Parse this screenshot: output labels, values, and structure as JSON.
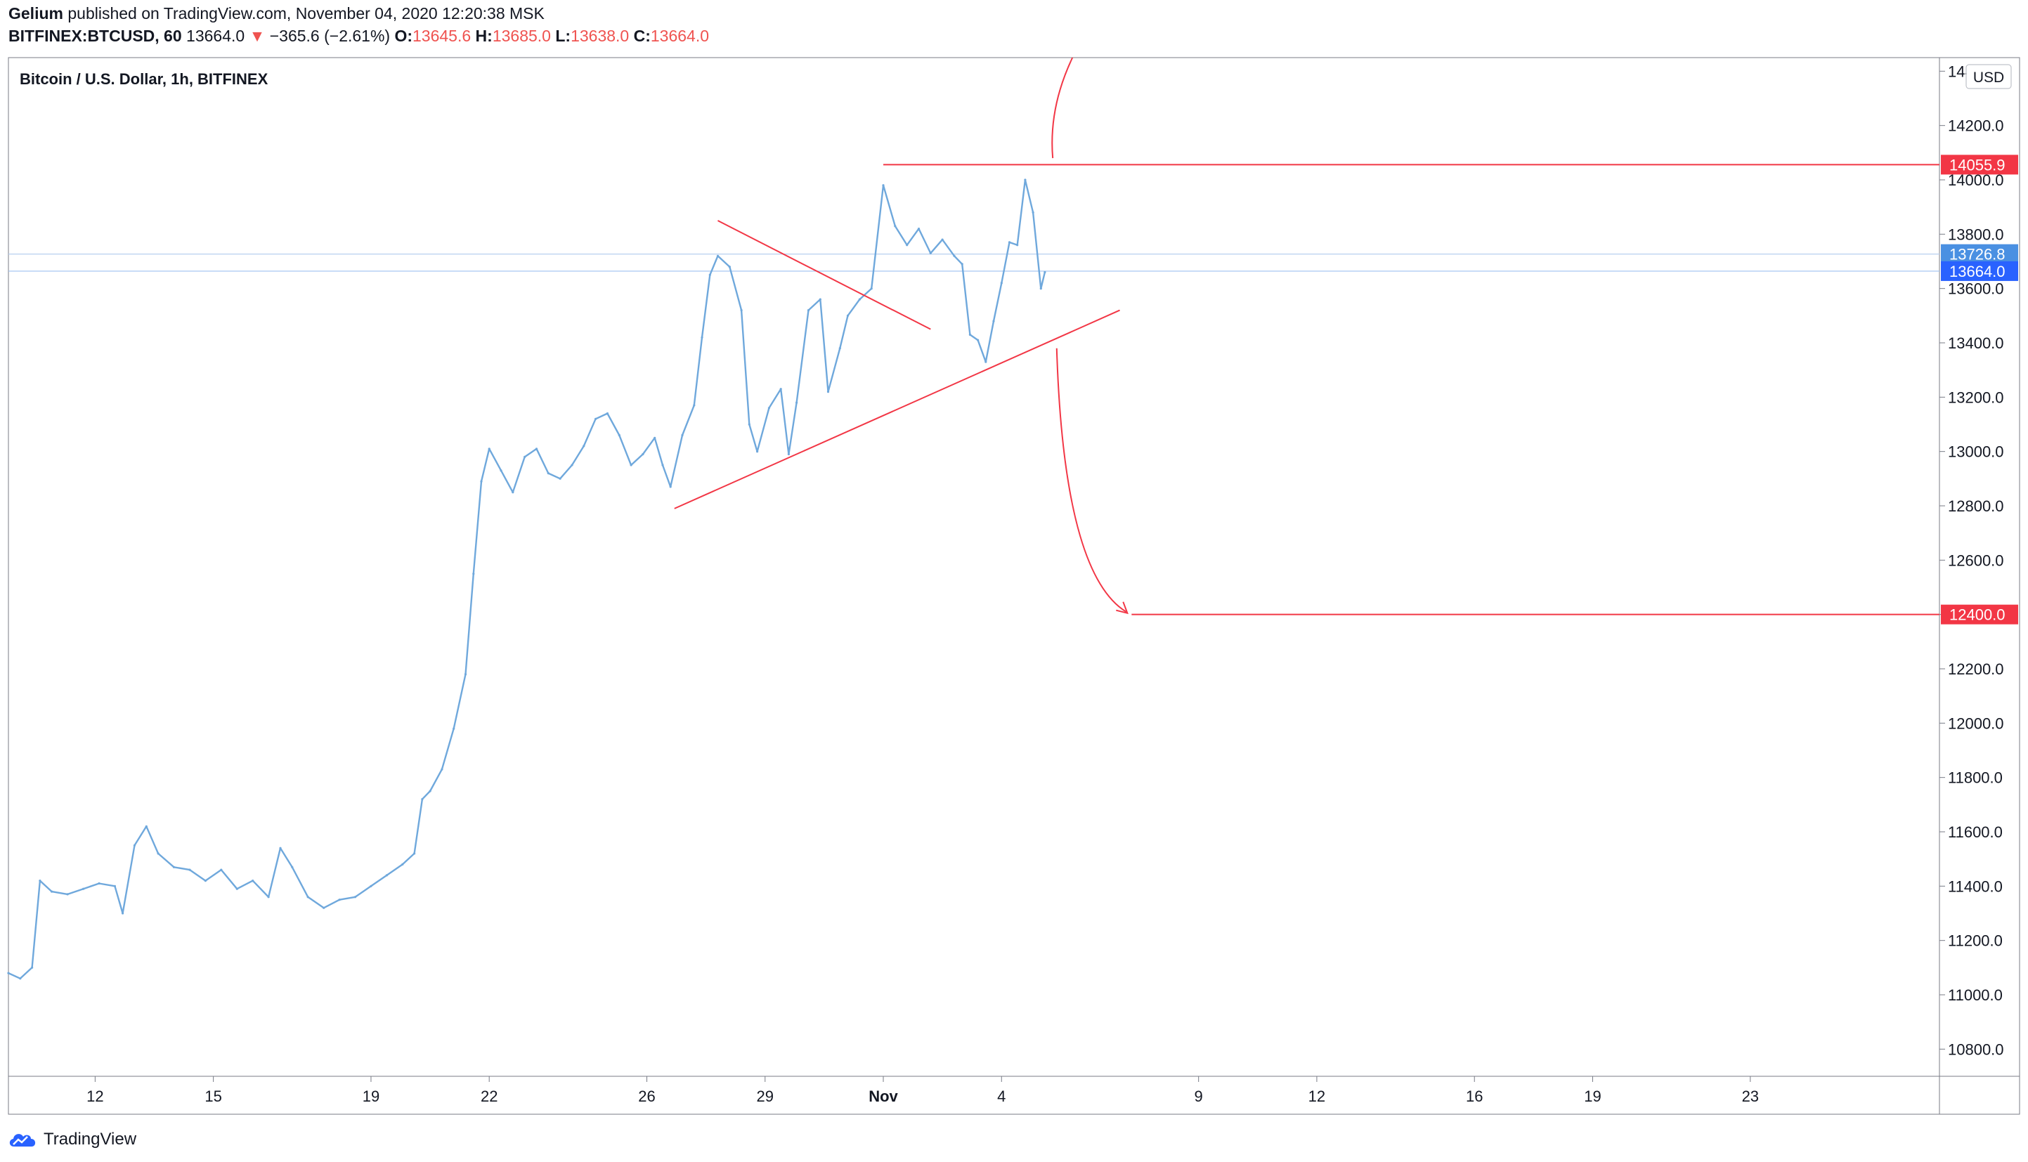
{
  "header": {
    "author": "Gelium",
    "published_text": "published on TradingView.com, November 04, 2020 12:20:38 MSK",
    "symbol": "BITFINEX:BTCUSD, 60",
    "last": "13664.0",
    "change_arrow": "▼",
    "change": "−365.6 (−2.61%)",
    "o_label": "O:",
    "o_value": "13645.6",
    "h_label": "H:",
    "h_value": "13685.0",
    "l_label": "L:",
    "l_value": "13638.0",
    "c_label": "C:",
    "c_value": "13664.0"
  },
  "footer": {
    "brand": "TradingView",
    "logo_icon": "tradingview-cloud-icon"
  },
  "colors": {
    "series": "#6fa8dc",
    "drawing": "#f23645",
    "axis_text": "#131722",
    "last_price_bg": "#2962ff",
    "mark_price_bg": "#4a90e2",
    "target_bg": "#f23645"
  },
  "chart_data": {
    "type": "line",
    "title": "Bitcoin / U.S. Dollar, 1h, BITFINEX",
    "currency_label": "USD",
    "ylim": [
      10700,
      14450
    ],
    "y_ticks": [
      "10800.0",
      "11000.0",
      "11200.0",
      "11400.0",
      "11600.0",
      "11800.0",
      "12000.0",
      "12200.0",
      "12400.0",
      "12600.0",
      "12800.0",
      "13000.0",
      "13200.0",
      "13400.0",
      "13600.0",
      "13800.0",
      "14000.0",
      "14200.0",
      "14400.0"
    ],
    "x_range_days": [
      10.0,
      26.2
    ],
    "x_ticks": [
      {
        "day": 11.5,
        "label": "12"
      },
      {
        "day": 14.5,
        "label": "15"
      },
      {
        "day": 18.5,
        "label": "19"
      },
      {
        "day": 21.5,
        "label": "22"
      },
      {
        "day": 25.5,
        "label": "26"
      },
      {
        "day": 28.5,
        "label": "29"
      },
      {
        "day": 31.5,
        "label": "Nov"
      },
      {
        "day": 34.5,
        "label": "4"
      },
      {
        "day": 39.5,
        "label": "9"
      },
      {
        "day": 42.5,
        "label": "12"
      },
      {
        "day": 46.5,
        "label": "16"
      },
      {
        "day": 49.5,
        "label": "19"
      },
      {
        "day": 53.5,
        "label": "23"
      }
    ],
    "x_day_min": 9.3,
    "x_day_max": 58.3,
    "series": [
      {
        "points": [
          [
            9.3,
            11080
          ],
          [
            9.6,
            11060
          ],
          [
            9.9,
            11100
          ],
          [
            10.1,
            11420
          ],
          [
            10.4,
            11380
          ],
          [
            10.8,
            11370
          ],
          [
            11.2,
            11390
          ],
          [
            11.6,
            11410
          ],
          [
            12.0,
            11400
          ],
          [
            12.2,
            11300
          ],
          [
            12.5,
            11550
          ],
          [
            12.8,
            11620
          ],
          [
            13.1,
            11520
          ],
          [
            13.5,
            11470
          ],
          [
            13.9,
            11460
          ],
          [
            14.3,
            11420
          ],
          [
            14.7,
            11460
          ],
          [
            15.1,
            11390
          ],
          [
            15.5,
            11420
          ],
          [
            15.9,
            11360
          ],
          [
            16.2,
            11540
          ],
          [
            16.5,
            11470
          ],
          [
            16.9,
            11360
          ],
          [
            17.3,
            11320
          ],
          [
            17.7,
            11350
          ],
          [
            18.1,
            11360
          ],
          [
            18.5,
            11400
          ],
          [
            18.9,
            11440
          ],
          [
            19.3,
            11480
          ],
          [
            19.6,
            11520
          ],
          [
            19.8,
            11720
          ],
          [
            20.0,
            11750
          ],
          [
            20.3,
            11830
          ],
          [
            20.6,
            11980
          ],
          [
            20.9,
            12180
          ],
          [
            21.1,
            12550
          ],
          [
            21.3,
            12890
          ],
          [
            21.5,
            13010
          ],
          [
            21.8,
            12930
          ],
          [
            22.1,
            12850
          ],
          [
            22.4,
            12980
          ],
          [
            22.7,
            13010
          ],
          [
            23.0,
            12920
          ],
          [
            23.3,
            12900
          ],
          [
            23.6,
            12950
          ],
          [
            23.9,
            13020
          ],
          [
            24.2,
            13120
          ],
          [
            24.5,
            13140
          ],
          [
            24.8,
            13060
          ],
          [
            25.1,
            12950
          ],
          [
            25.4,
            12990
          ],
          [
            25.7,
            13050
          ],
          [
            25.9,
            12950
          ],
          [
            26.1,
            12870
          ],
          [
            26.4,
            13060
          ],
          [
            26.7,
            13170
          ],
          [
            26.9,
            13420
          ],
          [
            27.1,
            13650
          ],
          [
            27.3,
            13720
          ],
          [
            27.6,
            13680
          ],
          [
            27.9,
            13520
          ],
          [
            28.1,
            13100
          ],
          [
            28.3,
            13000
          ],
          [
            28.6,
            13160
          ],
          [
            28.9,
            13230
          ],
          [
            29.1,
            12990
          ],
          [
            29.3,
            13180
          ],
          [
            29.6,
            13520
          ],
          [
            29.9,
            13560
          ],
          [
            30.1,
            13220
          ],
          [
            30.4,
            13380
          ],
          [
            30.6,
            13500
          ],
          [
            30.9,
            13560
          ],
          [
            31.2,
            13600
          ],
          [
            31.5,
            13980
          ],
          [
            31.8,
            13830
          ],
          [
            32.1,
            13760
          ],
          [
            32.4,
            13820
          ],
          [
            32.7,
            13730
          ],
          [
            33.0,
            13780
          ],
          [
            33.3,
            13720
          ],
          [
            33.5,
            13690
          ],
          [
            33.7,
            13430
          ],
          [
            33.9,
            13410
          ],
          [
            34.1,
            13330
          ],
          [
            34.3,
            13480
          ],
          [
            34.5,
            13620
          ],
          [
            34.7,
            13770
          ],
          [
            34.9,
            13760
          ],
          [
            35.1,
            14000
          ],
          [
            35.3,
            13880
          ],
          [
            35.5,
            13600
          ],
          [
            35.6,
            13660
          ]
        ]
      }
    ],
    "drawings": {
      "resistance": {
        "x1": 31.5,
        "x2": 58.3,
        "y": 14055.9,
        "label": "14055.9"
      },
      "target": {
        "x1": 37.8,
        "x2": 58.3,
        "y": 12400.0,
        "label": "12400.0"
      },
      "descending_line": {
        "x1": 27.3,
        "y1": 13850,
        "x2": 32.7,
        "y2": 13450
      },
      "ascending_line": {
        "x1": 26.2,
        "y1": 12790,
        "x2": 37.5,
        "y2": 13520
      },
      "curve_up": {
        "x1": 35.8,
        "y1": 14080,
        "x2": 36.3,
        "y2": 14460
      },
      "curve_down": {
        "x1": 35.9,
        "y1": 13380,
        "x2": 37.8,
        "y2": 12400
      }
    },
    "price_marks": [
      {
        "y": 13726.8,
        "label": "13726.8",
        "kind": "mark"
      },
      {
        "y": 13664.0,
        "label": "13664.0",
        "kind": "last"
      }
    ]
  }
}
